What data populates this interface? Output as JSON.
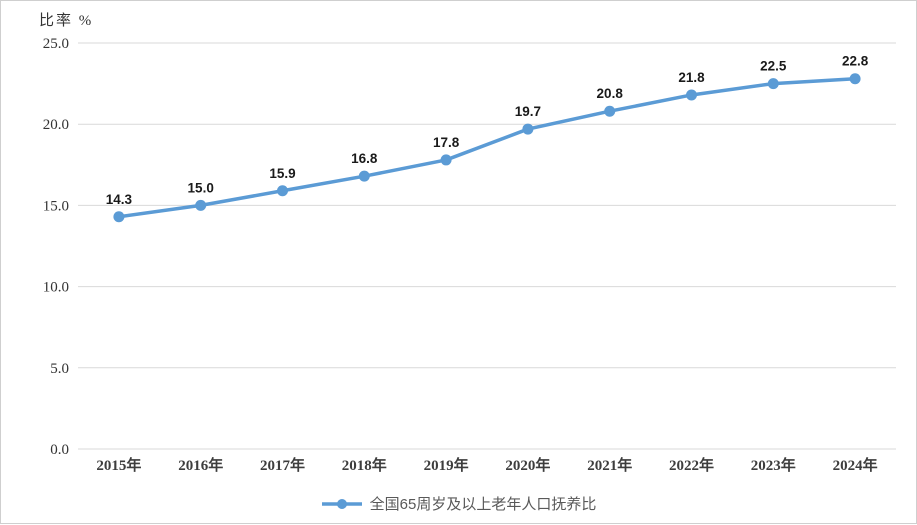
{
  "chart": {
    "axis_title": "比率 %",
    "legend_label": "全国65周岁及以上老年人口抚养比"
  },
  "chart_data": {
    "type": "line",
    "title": "",
    "ylabel": "比率 %",
    "xlabel": "",
    "categories": [
      "2015年",
      "2016年",
      "2017年",
      "2018年",
      "2019年",
      "2020年",
      "2021年",
      "2022年",
      "2023年",
      "2024年"
    ],
    "series": [
      {
        "name": "全国65周岁及以上老年人口抚养比",
        "values": [
          14.3,
          15.0,
          15.9,
          16.8,
          17.8,
          19.7,
          20.8,
          21.8,
          22.5,
          22.8
        ]
      }
    ],
    "data_labels": [
      "14.3",
      "15.0",
      "15.9",
      "16.8",
      "17.8",
      "19.7",
      "20.8",
      "21.8",
      "22.5",
      "22.8"
    ],
    "ylim": [
      0.0,
      25.0
    ],
    "ytick_step": 5.0,
    "ytick_labels": [
      "0.0",
      "5.0",
      "10.0",
      "15.0",
      "20.0",
      "25.0"
    ],
    "grid": true,
    "legend_position": "bottom",
    "colors": {
      "line": "#5B9BD5",
      "marker": "#5B9BD5",
      "grid": "#D9D9D9",
      "axis_line": "#BFBFBF",
      "tick_text": "#333333",
      "data_label": "#1a1a1a",
      "legend_text": "#595959",
      "frame_border": "#cfcfcf"
    }
  }
}
